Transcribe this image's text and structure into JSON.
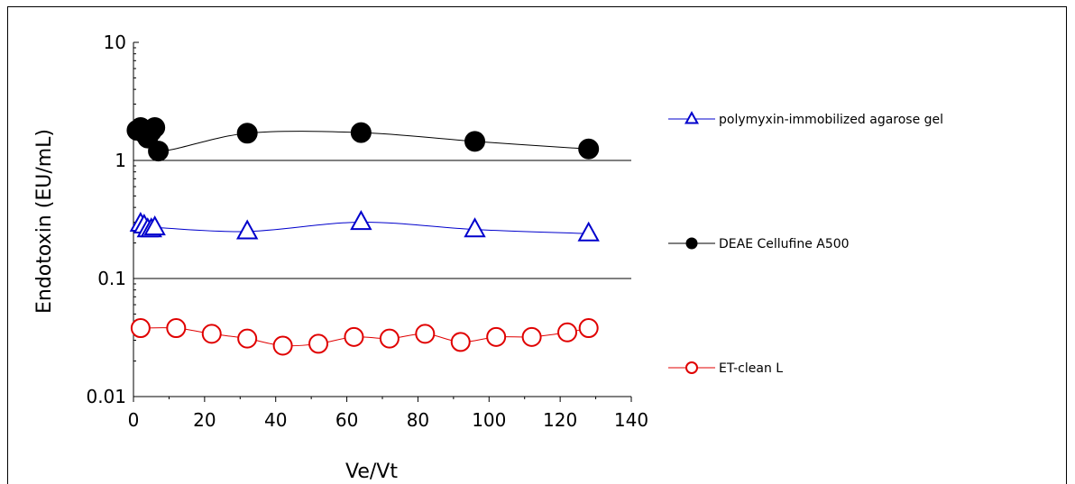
{
  "chart_data": {
    "type": "scatter",
    "title": "",
    "xlabel": "Ve/Vt",
    "ylabel": "Endotoxin (EU/mL)",
    "xlim": [
      0,
      140
    ],
    "ylim": [
      0.01,
      10
    ],
    "yscale": "log",
    "grid": "horizontal major lines at 0.1 and 1",
    "x_ticks": [
      "0",
      "20",
      "40",
      "60",
      "80",
      "100",
      "120",
      "140"
    ],
    "y_ticks": [
      "0.01",
      "0.1",
      "1",
      "10"
    ],
    "legend_position": "right",
    "series": [
      {
        "name": "polymyxin-immobilized agarose gel",
        "color": "#0000cc",
        "marker": "open-triangle",
        "x": [
          2,
          3,
          4,
          5,
          6,
          32,
          64,
          96,
          128
        ],
        "y": [
          0.29,
          0.28,
          0.26,
          0.26,
          0.27,
          0.25,
          0.3,
          0.26,
          0.24
        ]
      },
      {
        "name": "DEAE Cellufine A500",
        "color": "#000000",
        "marker": "filled-circle",
        "x": [
          1,
          2,
          3,
          4,
          5,
          6,
          7,
          32,
          64,
          96,
          128
        ],
        "y": [
          1.8,
          1.9,
          1.7,
          1.55,
          1.75,
          1.9,
          1.2,
          1.7,
          1.72,
          1.45,
          1.25
        ]
      },
      {
        "name": "ET-clean L",
        "color": "#e00000",
        "marker": "open-circle",
        "x": [
          2,
          12,
          22,
          32,
          42,
          52,
          62,
          72,
          82,
          92,
          102,
          112,
          122,
          128
        ],
        "y": [
          0.038,
          0.038,
          0.034,
          0.031,
          0.027,
          0.028,
          0.032,
          0.031,
          0.034,
          0.029,
          0.032,
          0.032,
          0.035,
          0.038
        ]
      }
    ]
  }
}
